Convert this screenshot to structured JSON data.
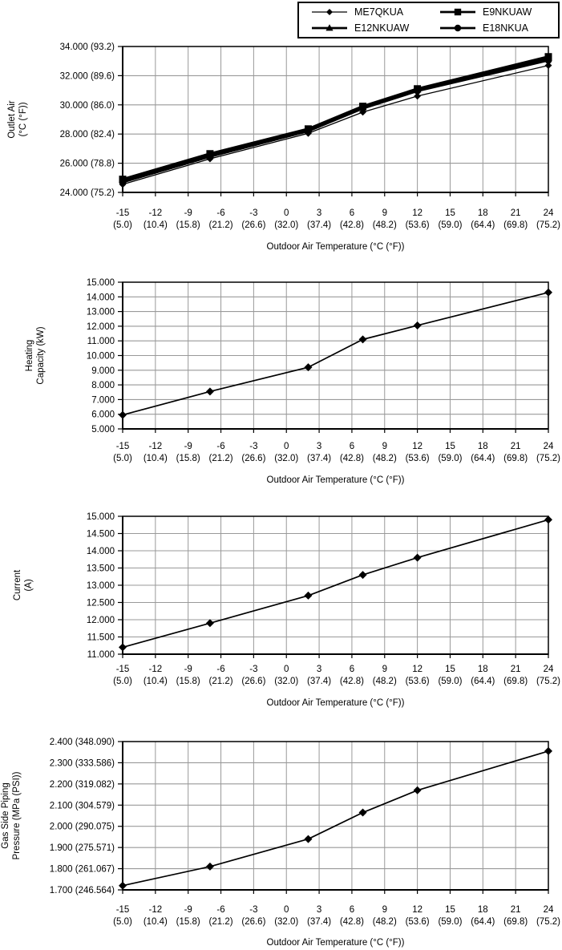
{
  "page": {
    "background": "#ffffff",
    "grid_color": "#999999",
    "line_color": "#000000"
  },
  "legend": {
    "position": "top-right",
    "items": [
      {
        "label": "ME7QKUA",
        "marker": "diamond"
      },
      {
        "label": "E9NKUAW",
        "marker": "square"
      },
      {
        "label": "E12NKUAW",
        "marker": "triangle"
      },
      {
        "label": "E18NKUA",
        "marker": "circle"
      }
    ]
  },
  "x_axis": {
    "label": "Outdoor Air Temperature (°C (°F))",
    "xlim": [
      -15,
      24
    ],
    "xstep": 3,
    "ticks_c": [
      "-15",
      "-12",
      "-9",
      "-6",
      "-3",
      "0",
      "3",
      "6",
      "9",
      "12",
      "15",
      "18",
      "21",
      "24"
    ],
    "ticks_f": [
      "(5.0)",
      "(10.4)",
      "(15.8)",
      "(21.2)",
      "(26.6)",
      "(32.0)",
      "(37.4)",
      "(42.8)",
      "(48.2)",
      "(53.6)",
      "(59.0)",
      "(64.4)",
      "(69.8)",
      "(75.2)"
    ]
  },
  "chart_data": [
    {
      "type": "line",
      "title": "",
      "ylabel": "Outlet Air (°C (°F))",
      "ylabel_lines": [
        "Outlet Air",
        "(°C (°F))"
      ],
      "xlabel": "Outdoor Air Temperature (°C (°F))",
      "ylim": [
        24,
        34
      ],
      "ystep": 2,
      "y_tick_labels": [
        "34.000 (93.2)",
        "32.000 (89.6)",
        "30.000 (86.0)",
        "28.000 (82.4)",
        "26.000 (78.8)",
        "24.000 (75.2)"
      ],
      "x": [
        -15,
        -7,
        2,
        7,
        12,
        24
      ],
      "grid": true,
      "series": [
        {
          "name": "ME7QKUA",
          "marker": "diamond",
          "values": [
            24.55,
            26.3,
            28.05,
            29.5,
            30.6,
            32.7
          ]
        },
        {
          "name": "E12NKUAW",
          "marker": "triangle",
          "values": [
            24.85,
            26.6,
            28.3,
            29.85,
            31.05,
            33.2
          ]
        },
        {
          "name": "E18NKUA",
          "marker": "circle",
          "values": [
            24.7,
            26.45,
            28.2,
            29.75,
            30.95,
            33.05
          ]
        },
        {
          "name": "E9NKUAW",
          "marker": "square",
          "values": [
            24.9,
            26.65,
            28.35,
            29.9,
            31.1,
            33.3
          ]
        }
      ]
    },
    {
      "type": "line",
      "title": "",
      "ylabel": "Heating Capacity (kW)",
      "ylabel_lines": [
        "Heating",
        "Capacity (kW)"
      ],
      "xlabel": "Outdoor Air Temperature (°C (°F))",
      "ylim": [
        5,
        15
      ],
      "ystep": 1,
      "y_tick_labels": [
        "15.000",
        "14.000",
        "13.000",
        "12.000",
        "11.000",
        "10.000",
        "9.000",
        "8.000",
        "7.000",
        "6.000",
        "5.000"
      ],
      "x": [
        -15,
        -7,
        2,
        7,
        12,
        24
      ],
      "grid": true,
      "series": [
        {
          "name": "",
          "marker": "diamond",
          "values": [
            5.95,
            7.55,
            9.2,
            11.1,
            12.05,
            14.3
          ]
        }
      ]
    },
    {
      "type": "line",
      "title": "",
      "ylabel": "Current (A)",
      "ylabel_lines": [
        "Current",
        "(A)"
      ],
      "xlabel": "Outdoor Air Temperature (°C (°F))",
      "ylim": [
        11,
        15
      ],
      "ystep": 0.5,
      "y_tick_labels": [
        "15.000",
        "14.500",
        "14.000",
        "13.500",
        "13.000",
        "12.500",
        "12.000",
        "11.500",
        "11.000"
      ],
      "x": [
        -15,
        -7,
        2,
        7,
        12,
        24
      ],
      "grid": true,
      "series": [
        {
          "name": "",
          "marker": "diamond",
          "values": [
            11.2,
            11.9,
            12.7,
            13.3,
            13.8,
            14.9
          ]
        }
      ]
    },
    {
      "type": "line",
      "title": "",
      "ylabel": "Gas Side Piping Pressure (MPa (PSI))",
      "ylabel_lines": [
        "Gas Side Piping",
        "Pressure (MPa (PSI))"
      ],
      "xlabel": "Outdoor Air Temperature (°C (°F))",
      "ylim": [
        1.7,
        2.4
      ],
      "ystep": 0.1,
      "y_tick_labels": [
        "2.400 (348.090)",
        "2.300 (333.586)",
        "2.200 (319.082)",
        "2.100 (304.579)",
        "2.000 (290.075)",
        "1.900 (275.571)",
        "1.800 (261.067)",
        "1.700 (246.564)"
      ],
      "x": [
        -15,
        -7,
        2,
        7,
        12,
        24
      ],
      "grid": true,
      "series": [
        {
          "name": "",
          "marker": "diamond",
          "values": [
            1.72,
            1.81,
            1.94,
            2.065,
            2.17,
            2.355
          ]
        }
      ]
    }
  ]
}
